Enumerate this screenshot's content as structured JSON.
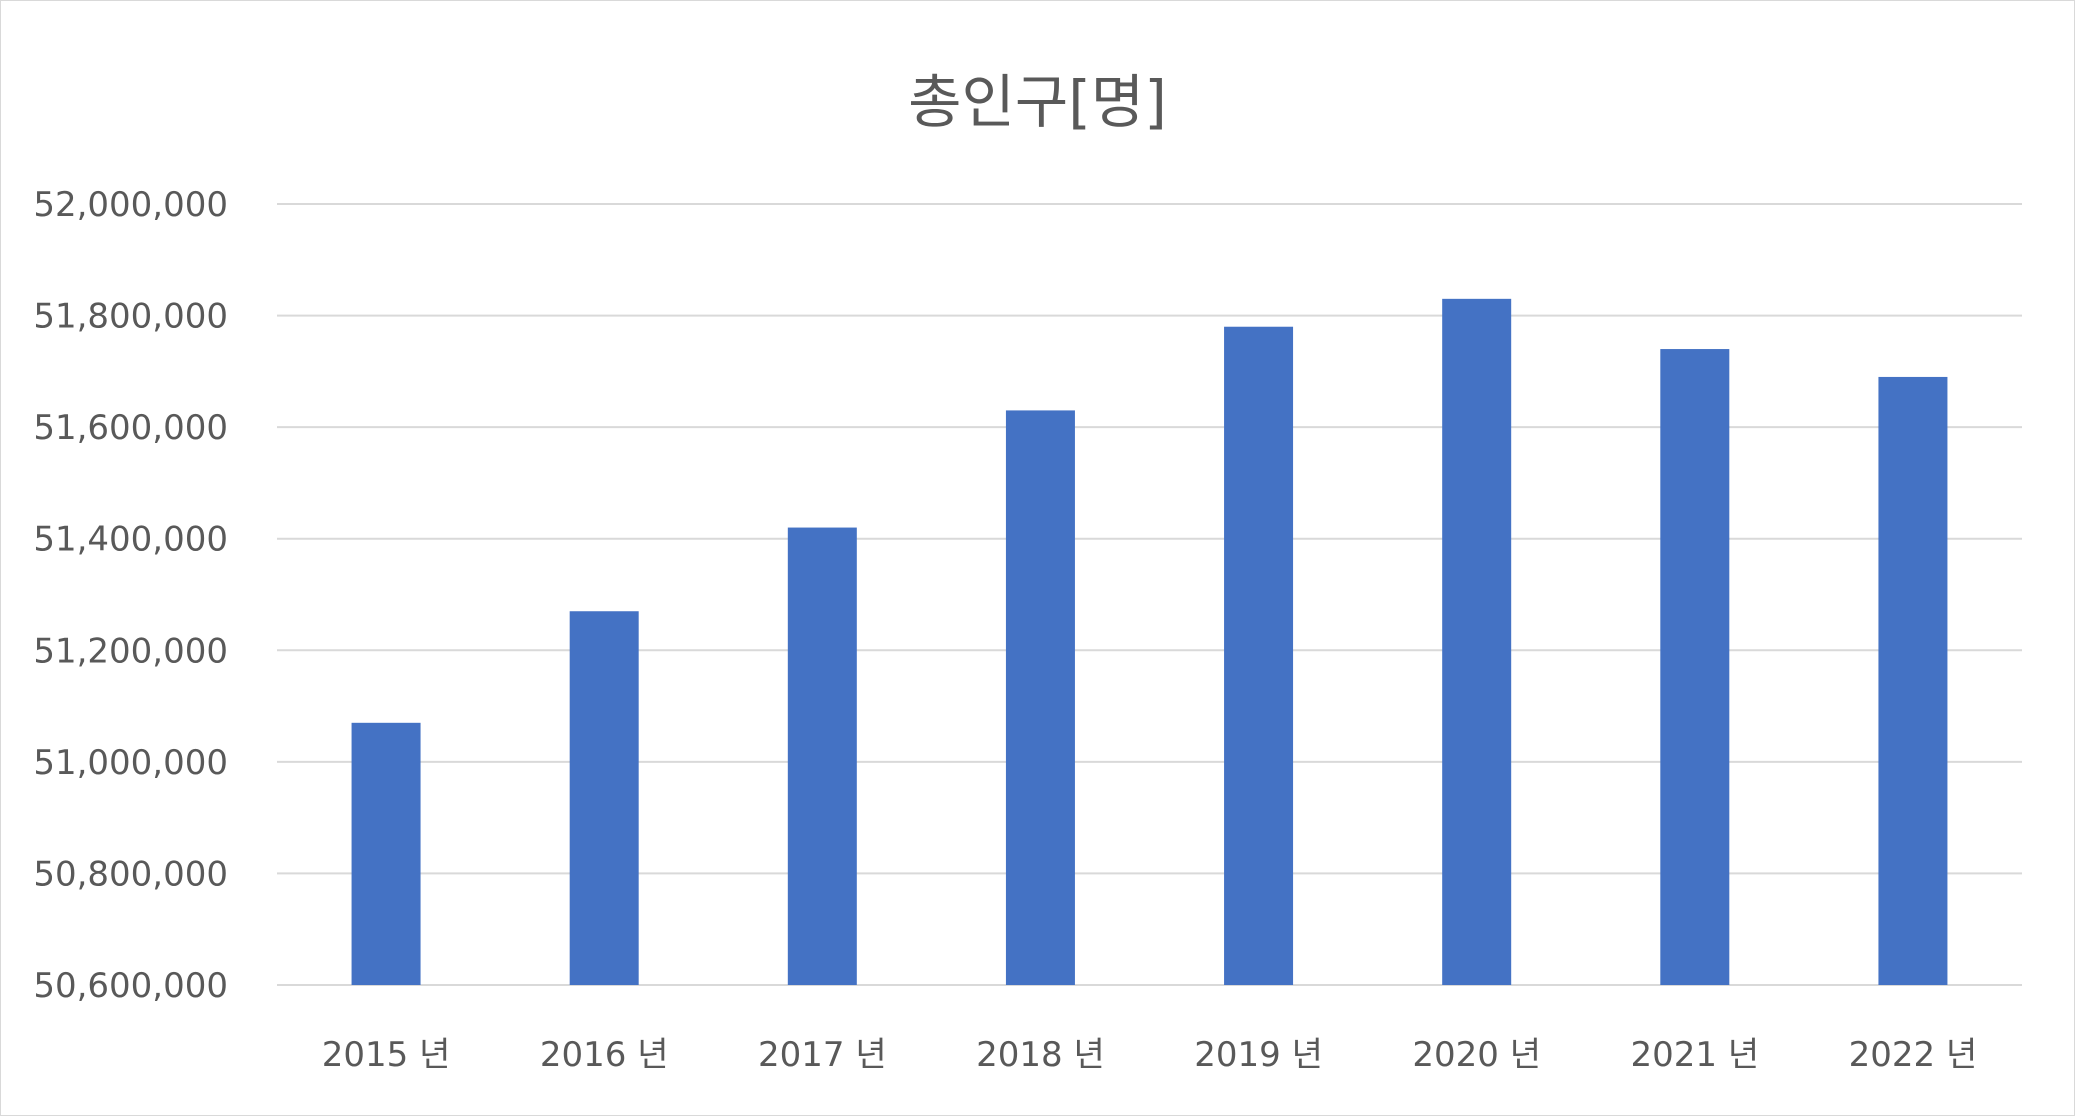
{
  "chart_data": {
    "type": "bar",
    "title": "총인구[명]",
    "xlabel": "",
    "ylabel": "",
    "categories": [
      "2015 년",
      "2016 년",
      "2017 년",
      "2018 년",
      "2019 년",
      "2020 년",
      "2021 년",
      "2022 년"
    ],
    "values": [
      51070000,
      51270000,
      51420000,
      51630000,
      51780000,
      51830000,
      51740000,
      51690000
    ],
    "ylim": [
      50600000,
      52000000
    ],
    "yticks": [
      50600000,
      50800000,
      51000000,
      51200000,
      51400000,
      51600000,
      51800000,
      52000000
    ],
    "ytick_labels": [
      "50,600,000",
      "50,800,000",
      "51,000,000",
      "51,200,000",
      "51,400,000",
      "51,600,000",
      "51,800,000",
      "52,000,000"
    ],
    "grid": true,
    "legend": "none",
    "bar_color": "#4472c4",
    "grid_color": "#d9d9d9",
    "text_color": "#595959"
  }
}
